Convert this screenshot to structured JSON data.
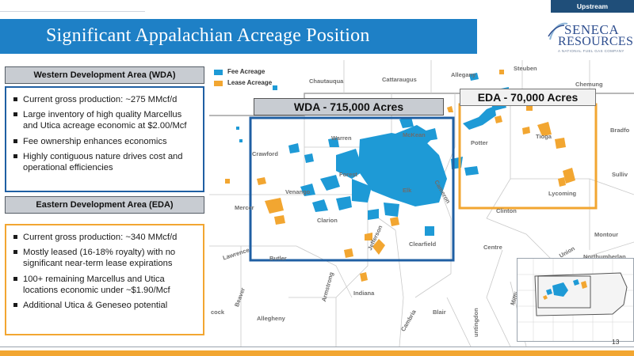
{
  "header": {
    "tag": "Upstream",
    "title": "Significant Appalachian Acreage Position",
    "logo_top": "SENECA",
    "logo_bottom": "RESOURCES",
    "logo_sub": "A NATIONAL FUEL GAS COMPANY"
  },
  "wda": {
    "heading": "Western Development Area (WDA)",
    "bullets": [
      "Current gross production: ~275 MMcf/d",
      "Large inventory of high quality Marcellus and Utica acreage economic at $2.00/Mcf",
      "Fee ownership enhances economics",
      "Highly contiguous nature drives cost and operational efficiencies"
    ]
  },
  "eda": {
    "heading": "Eastern Development Area (EDA)",
    "bullets": [
      "Current gross production: ~340 MMcf/d",
      "Mostly leased (16-18% royalty) with no significant near-term lease expirations",
      "100+ remaining Marcellus and Utica locations economic under ~$1.90/Mcf",
      "Additional Utica & Geneseo potential"
    ]
  },
  "map": {
    "legend": [
      {
        "label": "Fee Acreage",
        "color": "#1e9ad6"
      },
      {
        "label": "Lease Acreage",
        "color": "#f2a631"
      }
    ],
    "wda_label": "WDA - 715,000 Acres",
    "eda_label": "EDA - 70,000 Acres",
    "counties": {
      "chautauqua": "Chautauqua",
      "cattaraugus": "Cattaraugus",
      "allegany": "Allegany",
      "steuben": "Steuben",
      "chemung": "Chemung",
      "bradford": "Bradfo",
      "sullivan": "Sulliv",
      "tioga": "Tioga",
      "potter": "Potter",
      "mckean": "McKean",
      "warren": "Warren",
      "crawford": "Crawford",
      "forest": "Forest",
      "elk": "Elk",
      "cameron": "Cameron",
      "venango": "Venango",
      "mercer": "Mercer",
      "clarion": "Clarion",
      "jefferson": "Jefferson",
      "clearfield": "Clearfield",
      "clinton": "Clinton",
      "lycoming": "Lycoming",
      "lawrence": "Lawrence",
      "butler": "Butler",
      "armstrong": "Armstrong",
      "indiana": "Indiana",
      "centre": "Centre",
      "union": "Union",
      "montour": "Montour",
      "northumberland": "Northumberlan",
      "beaver": "Beaver",
      "allegheny": "Allegheny",
      "cambria": "Cambria",
      "blair": "Blair",
      "huntingdon": "untingdon",
      "mifflin": "Miffli",
      "westmoreland": "cock"
    }
  },
  "colors": {
    "title_bar": "#1e80c6",
    "wda_border": "#1f5fa3",
    "eda_border": "#f2a631",
    "fee": "#1e9ad6",
    "lease": "#f2a631"
  },
  "footer": {
    "page_number": "13"
  }
}
